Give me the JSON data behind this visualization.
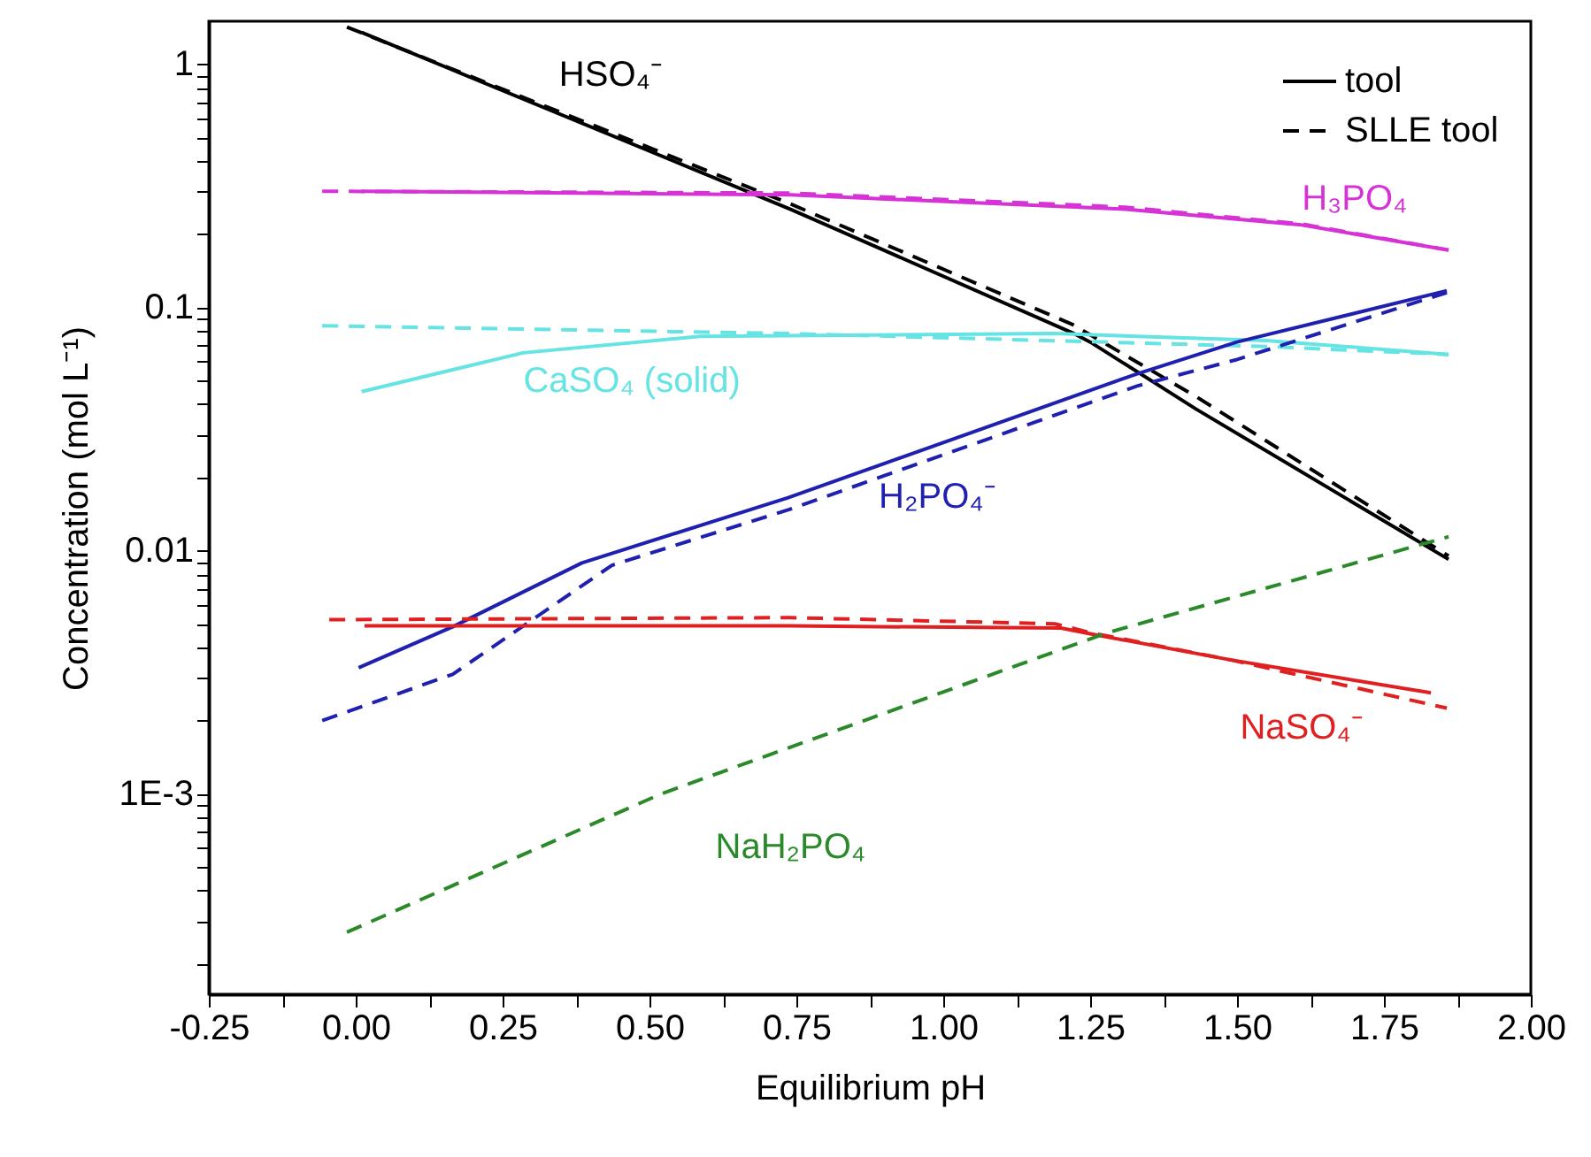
{
  "chart_data": {
    "type": "line",
    "xlabel": "Equilibrium pH",
    "ylabel": "Concentration (mol L⁻¹)",
    "log": "y",
    "grid": false,
    "legend": "top right",
    "xlim": [
      -0.25,
      2.0
    ],
    "xticks": [
      -0.25,
      {
        "value": -0.125,
        "label": null
      },
      {
        "value": 0.0,
        "label": "0.00"
      },
      {
        "value": 0.125,
        "label": null
      },
      0.25,
      {
        "value": 0.375,
        "label": null
      },
      {
        "value": 0.5,
        "label": "0.50"
      },
      {
        "value": 0.625,
        "label": null
      },
      0.75,
      {
        "value": 0.875,
        "label": null
      },
      {
        "value": 1.0,
        "label": "1.00"
      },
      {
        "value": 1.125,
        "label": null
      },
      1.25,
      {
        "value": 1.375,
        "label": null
      },
      {
        "value": 1.5,
        "label": "1.50"
      },
      {
        "value": 1.625,
        "label": null
      },
      1.75,
      {
        "value": 1.875,
        "label": null
      },
      {
        "value": 2.0,
        "label": "2.00"
      }
    ],
    "ylim": [
      0.00015,
      1.5
    ],
    "yticks": [
      {
        "value": 0.0002,
        "label": null
      },
      {
        "value": 0.0003,
        "label": null
      },
      {
        "value": 0.0004,
        "label": null
      },
      {
        "value": 0.0005,
        "label": null
      },
      {
        "value": 0.0006,
        "label": null
      },
      {
        "value": 0.0007,
        "label": null
      },
      {
        "value": 0.0008,
        "label": null
      },
      {
        "value": 0.0009,
        "label": null
      },
      {
        "value": 0.001,
        "label": "1E-3"
      },
      {
        "value": 0.002,
        "label": null
      },
      {
        "value": 0.003,
        "label": null
      },
      {
        "value": 0.004,
        "label": null
      },
      {
        "value": 0.005,
        "label": null
      },
      {
        "value": 0.006,
        "label": null
      },
      {
        "value": 0.007,
        "label": null
      },
      {
        "value": 0.008,
        "label": null
      },
      {
        "value": 0.009,
        "label": null
      },
      0.01,
      {
        "value": 0.02,
        "label": null
      },
      {
        "value": 0.03,
        "label": null
      },
      {
        "value": 0.04,
        "label": null
      },
      {
        "value": 0.05,
        "label": null
      },
      {
        "value": 0.06,
        "label": null
      },
      {
        "value": 0.07,
        "label": null
      },
      {
        "value": 0.08,
        "label": null
      },
      {
        "value": 0.09,
        "label": null
      },
      0.1,
      {
        "value": 0.2,
        "label": null
      },
      {
        "value": 0.3,
        "label": null
      },
      {
        "value": 0.4,
        "label": null
      },
      {
        "value": 0.5,
        "label": null
      },
      {
        "value": 0.6,
        "label": null
      },
      {
        "value": 0.7,
        "label": null
      },
      {
        "value": 0.8,
        "label": null
      },
      {
        "value": 0.9,
        "label": null
      },
      1
    ],
    "series": [
      {
        "name": "tool",
        "color": "#000000",
        "line_style": "solid",
        "x": [
          0.01,
          0.74,
          1.22,
          1.25,
          1.43,
          1.86
        ],
        "values": [
          1.35,
          0.253,
          0.0785,
          0.072,
          0.0382,
          0.0092
        ]
      },
      {
        "name": "SLLE tool",
        "color": "#000000",
        "line_style": "dashed",
        "x": [
          -0.015,
          0.74,
          1.22,
          1.43,
          1.86
        ],
        "values": [
          1.42,
          0.266,
          0.085,
          0.043,
          0.0095
        ]
      },
      {
        "color": "#d633d6",
        "line_style": "solid",
        "x": [
          0.01,
          0.74,
          1.31,
          1.61,
          1.86
        ],
        "values": [
          0.3,
          0.29,
          0.253,
          0.218,
          0.172
        ]
      },
      {
        "color": "#d633d6",
        "line_style": "dashed",
        "x": [
          -0.057,
          0.74,
          1.31,
          1.61,
          1.86
        ],
        "values": [
          0.3,
          0.295,
          0.258,
          0.22,
          0.172
        ]
      },
      {
        "color": "#66e3e3",
        "line_style": "solid",
        "x": [
          0.01,
          0.285,
          0.586,
          1.19,
          1.55,
          1.86
        ],
        "values": [
          0.045,
          0.065,
          0.076,
          0.078,
          0.073,
          0.064
        ]
      },
      {
        "color": "#66e3e3",
        "line_style": "dashed",
        "x": [
          -0.057,
          0.74,
          1.55,
          1.86
        ],
        "values": [
          0.084,
          0.078,
          0.069,
          0.064
        ]
      },
      {
        "color": "#2020b0",
        "line_style": "solid",
        "x": [
          0.005,
          0.165,
          0.385,
          0.736,
          1.33,
          1.5,
          1.857
        ],
        "values": [
          0.0033,
          0.00486,
          0.0089,
          0.0165,
          0.0533,
          0.072,
          0.117
        ]
      },
      {
        "color": "#2020b0",
        "line_style": "dashed",
        "x": [
          -0.057,
          0.165,
          0.436,
          0.736,
          1.33,
          1.5,
          1.857
        ],
        "values": [
          0.002,
          0.0031,
          0.0087,
          0.0147,
          0.0475,
          0.061,
          0.115
        ]
      },
      {
        "color": "#e02020",
        "line_style": "solid",
        "x": [
          0.015,
          0.74,
          1.2,
          1.25,
          1.49,
          1.83
        ],
        "values": [
          0.0049,
          0.0049,
          0.0048,
          0.00455,
          0.00355,
          0.0026
        ]
      },
      {
        "color": "#e02020",
        "line_style": "dashed",
        "x": [
          -0.045,
          0.74,
          1.19,
          1.25,
          1.49,
          1.857
        ],
        "values": [
          0.0052,
          0.0053,
          0.005,
          0.0046,
          0.00355,
          0.00225
        ]
      },
      {
        "color": "#2a8a2a",
        "line_style": "dashed",
        "x": [
          -0.015,
          0.52,
          1.28,
          1.86
        ],
        "values": [
          0.00027,
          0.001,
          0.0046,
          0.0114
        ]
      }
    ],
    "annotations": [
      {
        "text": "HSO₄⁻",
        "x": 0.38,
        "y": 0.58
      },
      {
        "text": "H₃PO₄",
        "x": 1.7,
        "y": 0.2
      },
      {
        "text": "CaSO₄ (solid)",
        "x": 0.47,
        "y": 0.072
      },
      {
        "text": "H₂PO₄⁻",
        "x": 0.99,
        "y": 0.0273
      },
      {
        "text": "NaSO₄⁻",
        "x": 1.61,
        "y": 0.00319
      },
      {
        "text": "NaH₂PO₄",
        "x": 0.74,
        "y": 0.00156
      }
    ]
  }
}
